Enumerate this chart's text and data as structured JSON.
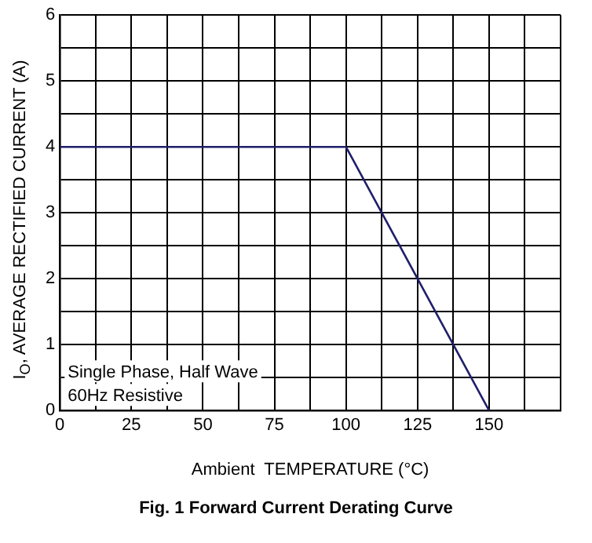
{
  "chart_data": {
    "type": "line",
    "title": "Fig. 1  Forward Current Derating Curve",
    "xlabel": "Ambient  TEMPERATURE (°C)",
    "ylabel": "I$_{O}$, AVERAGE RECTIFIED CURRENT (A)",
    "x": [
      0,
      100,
      150
    ],
    "series": [
      {
        "color": "#1f1f6b",
        "values": [
          4,
          4,
          0
        ]
      }
    ],
    "xlim": [
      0,
      175
    ],
    "xticks": [
      0,
      {
        "value": 12.5,
        "label": null
      },
      25,
      {
        "value": 37.5,
        "label": null
      },
      50,
      {
        "value": 62.5,
        "label": null
      },
      75,
      {
        "value": 87.5,
        "label": null
      },
      100,
      {
        "value": 112.5,
        "label": null
      },
      125,
      {
        "value": 137.5,
        "label": null
      },
      150,
      {
        "value": 162.5,
        "label": null
      },
      {
        "value": 175,
        "label": null
      }
    ],
    "ylim": [
      0,
      6
    ],
    "yticks": [
      0,
      {
        "value": 0.5,
        "label": null
      },
      1,
      {
        "value": 1.5,
        "label": null
      },
      2,
      {
        "value": 2.5,
        "label": null
      },
      3,
      {
        "value": 3.5,
        "label": null
      },
      4,
      {
        "value": 4.5,
        "label": null
      },
      5,
      {
        "value": 5.5,
        "label": null
      },
      6
    ],
    "grid": true,
    "legend": false,
    "marker": "none",
    "line_style": "solid",
    "annotations": [
      "Single Phase, Half Wave",
      "60Hz Resistive"
    ]
  }
}
